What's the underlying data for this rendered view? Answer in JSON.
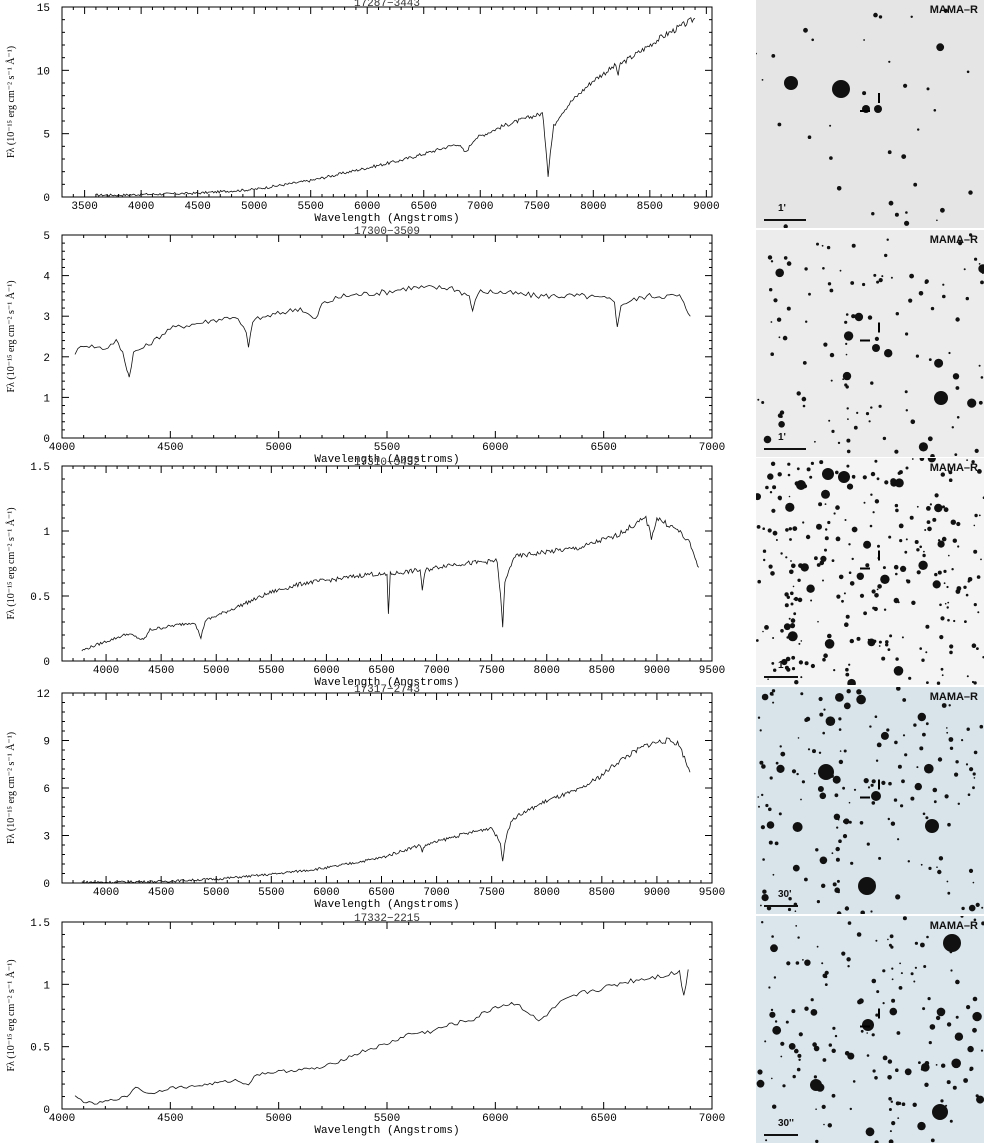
{
  "charts": [
    {
      "title": "17287−3443",
      "xlabel": "Wavelength (Angstroms)",
      "ylabel": "Fλ (10⁻¹⁵ erg cm⁻² s⁻¹ Å⁻¹)",
      "survey": "MAMA–R",
      "scale": "1'",
      "background": "#e5e5e5",
      "chart_data": {
        "type": "line",
        "xlim": [
          3300,
          9050
        ],
        "ylim": [
          0,
          15
        ],
        "xticks": [
          3500,
          4000,
          4500,
          5000,
          5500,
          6000,
          6500,
          7000,
          7500,
          8000,
          8500,
          9000
        ],
        "yticks": [
          0,
          5,
          10,
          15
        ],
        "x": [
          3600,
          3800,
          4000,
          4500,
          5000,
          5500,
          6000,
          6300,
          6500,
          6800,
          6870,
          6950,
          7000,
          7200,
          7400,
          7550,
          7580,
          7600,
          7620,
          7650,
          7700,
          7800,
          8000,
          8200,
          8220,
          8240,
          8400,
          8600,
          8800,
          8900
        ],
        "y": [
          0.15,
          0.15,
          0.2,
          0.3,
          0.6,
          1.3,
          2.3,
          2.9,
          3.4,
          4.2,
          3.5,
          4.6,
          4.8,
          5.6,
          6.2,
          6.6,
          4.0,
          1.7,
          3.5,
          5.6,
          6.4,
          7.5,
          9.2,
          10.4,
          9.6,
          10.5,
          11.4,
          12.6,
          13.6,
          14.1
        ]
      }
    },
    {
      "title": "17300−3509",
      "xlabel": "Wavelength (Angstroms)",
      "ylabel": "Fλ (10⁻¹⁵ erg cm⁻² s⁻¹ Å⁻¹)",
      "survey": "MAMA–R",
      "scale": "1'",
      "background": "#ececec",
      "chart_data": {
        "type": "line",
        "xlim": [
          4000,
          7000
        ],
        "ylim": [
          0,
          5
        ],
        "xticks": [
          4000,
          4500,
          5000,
          5500,
          6000,
          6500,
          7000
        ],
        "yticks": [
          0,
          1,
          2,
          3,
          4,
          5
        ],
        "x": [
          4060,
          4100,
          4200,
          4250,
          4280,
          4300,
          4310,
          4330,
          4400,
          4500,
          4600,
          4700,
          4800,
          4850,
          4861,
          4880,
          4950,
          5100,
          5170,
          5200,
          5300,
          5500,
          5600,
          5800,
          5880,
          5895,
          5920,
          6000,
          6200,
          6400,
          6550,
          6563,
          6580,
          6700,
          6850,
          6880,
          6900
        ],
        "y": [
          2.1,
          2.3,
          2.2,
          2.4,
          2.1,
          1.7,
          1.5,
          2.1,
          2.3,
          2.7,
          2.8,
          2.9,
          3.0,
          2.6,
          2.2,
          2.9,
          3.0,
          3.2,
          2.9,
          3.3,
          3.5,
          3.6,
          3.7,
          3.7,
          3.5,
          3.1,
          3.6,
          3.6,
          3.5,
          3.5,
          3.4,
          2.7,
          3.3,
          3.5,
          3.5,
          3.2,
          3.0
        ]
      }
    },
    {
      "title": "17310−3432",
      "xlabel": "Wavelength (Angstroms)",
      "ylabel": "Fλ (10⁻¹⁵ erg cm⁻² s⁻¹ Å⁻¹)",
      "survey": "MAMA–R",
      "scale": "1'",
      "background": "#f4f4f4",
      "chart_data": {
        "type": "line",
        "xlim": [
          3600,
          9500
        ],
        "ylim": [
          0,
          1.5
        ],
        "xticks": [
          4000,
          4500,
          5000,
          5500,
          6000,
          6500,
          7000,
          7500,
          8000,
          8500,
          9000,
          9500
        ],
        "yticks": [
          0,
          0.5,
          1,
          1.5
        ],
        "x": [
          3780,
          3900,
          4000,
          4100,
          4200,
          4340,
          4400,
          4600,
          4800,
          4861,
          4900,
          5200,
          5500,
          5800,
          6100,
          6400,
          6550,
          6563,
          6580,
          6850,
          6870,
          6900,
          7100,
          7400,
          7550,
          7580,
          7600,
          7620,
          7700,
          8000,
          8300,
          8500,
          8600,
          8700,
          8800,
          8900,
          8950,
          9000,
          9100,
          9200,
          9300,
          9380
        ],
        "y": [
          0.08,
          0.12,
          0.15,
          0.18,
          0.21,
          0.16,
          0.24,
          0.27,
          0.3,
          0.18,
          0.31,
          0.42,
          0.53,
          0.6,
          0.63,
          0.67,
          0.66,
          0.37,
          0.67,
          0.7,
          0.55,
          0.7,
          0.74,
          0.76,
          0.77,
          0.5,
          0.27,
          0.6,
          0.8,
          0.84,
          0.87,
          0.93,
          0.95,
          1.0,
          1.05,
          1.1,
          0.95,
          1.1,
          1.05,
          1.0,
          0.9,
          0.72
        ]
      }
    },
    {
      "title": "17317−2743",
      "xlabel": "Wavelength (Angstroms)",
      "ylabel": "Fλ (10⁻¹⁵ erg cm⁻² s⁻¹ Å⁻¹)",
      "survey": "MAMA–R",
      "scale": "30'",
      "background": "#d8e3ea",
      "chart_data": {
        "type": "line",
        "xlim": [
          3600,
          9500
        ],
        "ylim": [
          0,
          12
        ],
        "xticks": [
          4000,
          4500,
          5000,
          5500,
          6000,
          6500,
          7000,
          7500,
          8000,
          8500,
          9000,
          9500
        ],
        "yticks": [
          0,
          3,
          6,
          9,
          12
        ],
        "x": [
          3780,
          4000,
          4500,
          5000,
          5500,
          6000,
          6500,
          6850,
          6870,
          6900,
          7200,
          7500,
          7580,
          7600,
          7620,
          7650,
          7700,
          8000,
          8300,
          8500,
          8600,
          8700,
          8800,
          8900,
          9000,
          9100,
          9200,
          9300
        ],
        "y": [
          0.05,
          0.05,
          0.1,
          0.25,
          0.55,
          0.95,
          1.6,
          2.4,
          2.0,
          2.4,
          3.0,
          3.5,
          2.5,
          1.3,
          2.6,
          3.4,
          4.1,
          5.2,
          5.9,
          6.8,
          7.4,
          7.9,
          8.3,
          8.7,
          8.9,
          9.0,
          8.8,
          7.0
        ]
      }
    },
    {
      "title": "17332−2215",
      "xlabel": "Wavelength (Angstroms)",
      "ylabel": "Fλ (10⁻¹⁵ erg cm⁻² s⁻¹ Å⁻¹)",
      "survey": "MAMA–R",
      "scale": "30''",
      "background": "#dbe5ec",
      "chart_data": {
        "type": "line",
        "xlim": [
          4000,
          7000
        ],
        "ylim": [
          0,
          1.5
        ],
        "xticks": [
          4000,
          4500,
          5000,
          5500,
          6000,
          6500,
          7000
        ],
        "yticks": [
          0,
          0.5,
          1,
          1.5
        ],
        "x": [
          4060,
          4100,
          4150,
          4200,
          4300,
          4340,
          4400,
          4500,
          4600,
          4800,
          4861,
          4900,
          5000,
          5200,
          5300,
          5400,
          5500,
          5600,
          5700,
          5800,
          5900,
          6000,
          6100,
          6200,
          6300,
          6400,
          6500,
          6600,
          6700,
          6800,
          6850,
          6870,
          6890
        ],
        "y": [
          0.1,
          0.06,
          0.04,
          0.06,
          0.1,
          0.18,
          0.12,
          0.17,
          0.18,
          0.23,
          0.2,
          0.28,
          0.3,
          0.33,
          0.4,
          0.47,
          0.52,
          0.6,
          0.62,
          0.68,
          0.72,
          0.82,
          0.85,
          0.7,
          0.85,
          0.93,
          0.97,
          1.02,
          1.05,
          1.08,
          1.1,
          0.9,
          1.12
        ]
      }
    }
  ]
}
